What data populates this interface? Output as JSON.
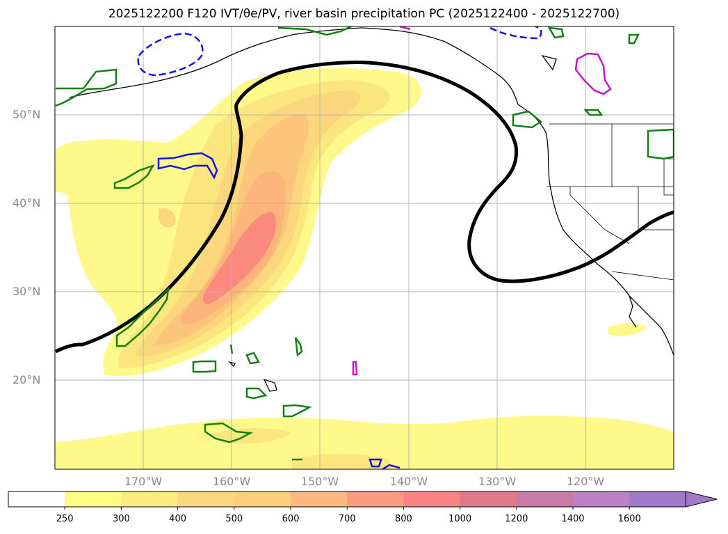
{
  "title": "2025122200 F120 IVT/θe/PV, river basin precipitation PC (2025122400 - 2025122700)",
  "lat_labels": [
    "50°N",
    "40°N",
    "30°N",
    "20°N"
  ],
  "lon_labels": [
    "170°W",
    "160°W",
    "150°W",
    "140°W",
    "130°W",
    "120°W"
  ],
  "colorbar": {
    "levels": [
      "250",
      "300",
      "400",
      "500",
      "600",
      "700",
      "800",
      "1000",
      "1200",
      "1400",
      "1600"
    ],
    "colors": [
      "#ffffff",
      "#fdfd82",
      "#fbec80",
      "#fbd880",
      "#fbcf80",
      "#fbb880",
      "#fb9c80",
      "#f98282",
      "#e07a8a",
      "#c87aa6",
      "#bc80c4",
      "#a07ac8"
    ]
  },
  "colors": {
    "ivt_light": "#fff88a",
    "ivt_mid": "#fbd67c",
    "ivt_orange": "#fbb57a",
    "ivt_core": "#fa8a7e",
    "theta_contour": "#000000",
    "pv_green": "#108010",
    "pv_blue": "#1414e6",
    "pv_magenta": "#c814c8",
    "grid": "#b4b4b4",
    "coast": "#000000"
  }
}
